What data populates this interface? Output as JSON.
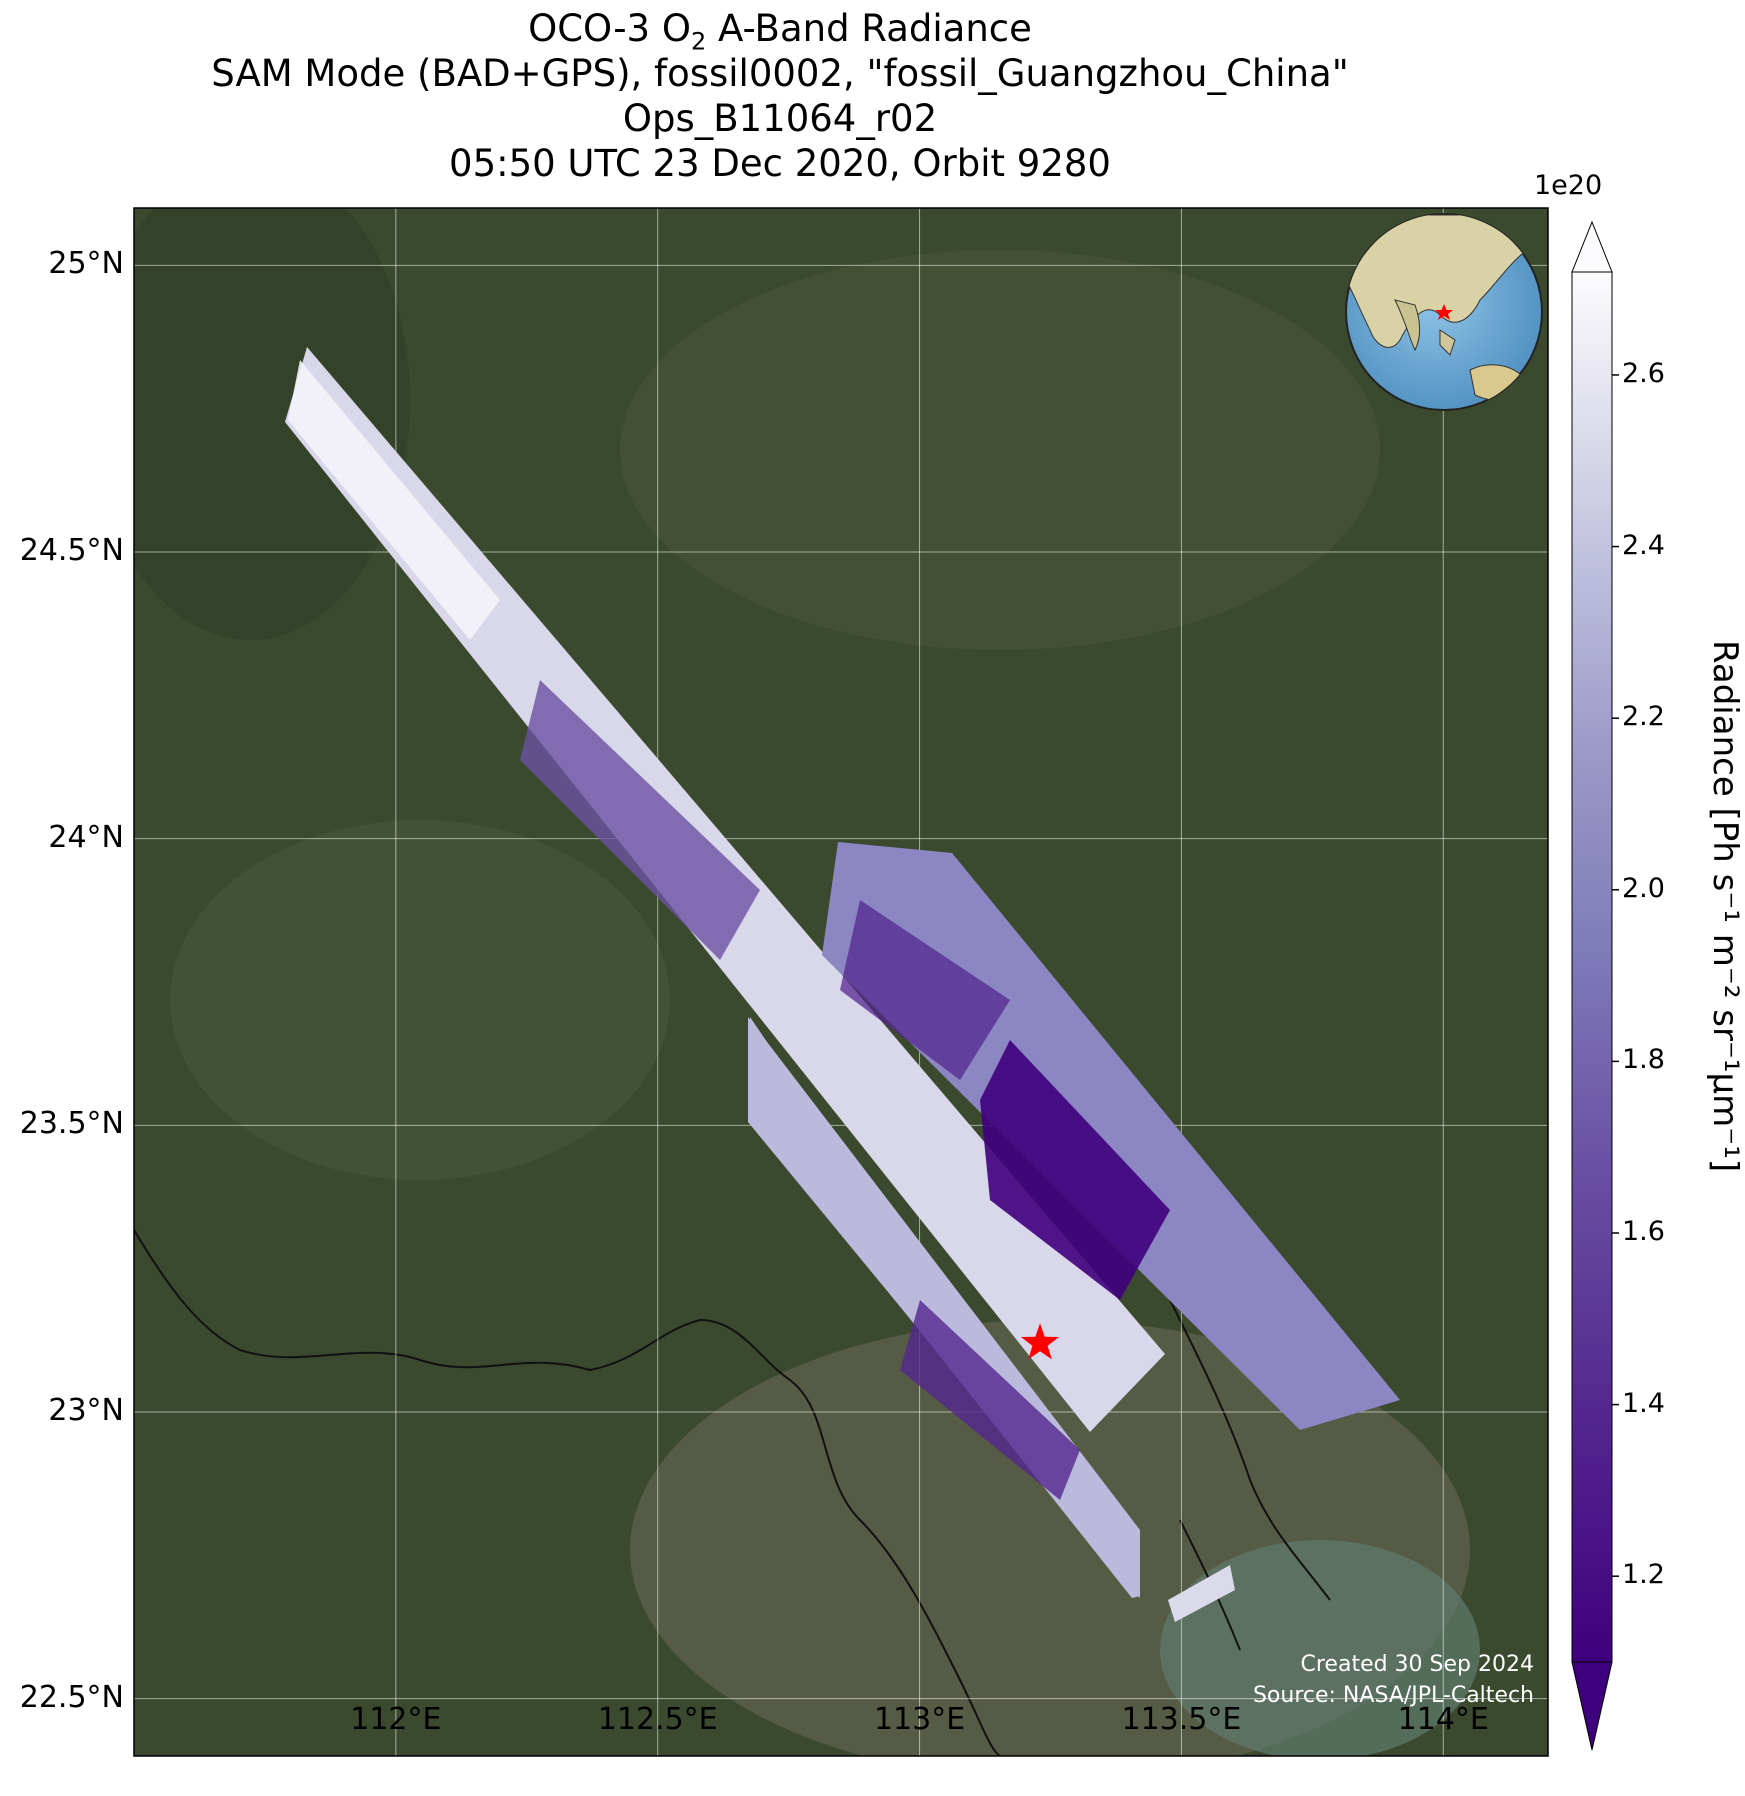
{
  "title": {
    "line1_prefix": "OCO-3 O",
    "line1_sub": "2",
    "line1_suffix": " A-Band Radiance",
    "line2": "SAM Mode (BAD+GPS), fossil0002, \"fossil_Guangzhou_China\"",
    "line3": "Ops_B11064_r02",
    "line4": "05:50 UTC 23 Dec 2020, Orbit 9280"
  },
  "map": {
    "extent": {
      "lon_min": 111.5,
      "lon_max": 114.2,
      "lat_min": 22.4,
      "lat_max": 25.1
    },
    "lat_ticks": [
      {
        "value": 25.0,
        "label": "25°N"
      },
      {
        "value": 24.5,
        "label": "24.5°N"
      },
      {
        "value": 24.0,
        "label": "24°N"
      },
      {
        "value": 23.5,
        "label": "23.5°N"
      },
      {
        "value": 23.0,
        "label": "23°N"
      },
      {
        "value": 22.5,
        "label": "22.5°N"
      }
    ],
    "lon_ticks": [
      {
        "value": 112.0,
        "label": "112°E"
      },
      {
        "value": 112.5,
        "label": "112.5°E"
      },
      {
        "value": 113.0,
        "label": "113°E"
      },
      {
        "value": 113.5,
        "label": "113.5°E"
      },
      {
        "value": 114.0,
        "label": "114°E"
      }
    ],
    "target_marker": {
      "lon": 113.23,
      "lat": 23.12,
      "color": "#ff0000"
    },
    "background_color": "#3b4a2e",
    "gridlines": true
  },
  "colorbar": {
    "label": "Radiance [Ph s⁻¹ m⁻² sr⁻¹μm⁻¹]",
    "exponent": "1e20",
    "min": 1.1,
    "max": 2.72,
    "ticks": [
      {
        "value": 2.6,
        "label": "2.6"
      },
      {
        "value": 2.4,
        "label": "2.4"
      },
      {
        "value": 2.2,
        "label": "2.2"
      },
      {
        "value": 2.0,
        "label": "2.0"
      },
      {
        "value": 1.8,
        "label": "1.8"
      },
      {
        "value": 1.6,
        "label": "1.6"
      },
      {
        "value": 1.4,
        "label": "1.4"
      },
      {
        "value": 1.2,
        "label": "1.2"
      }
    ],
    "colormap": "Purples_r",
    "color_low": "#3f007d",
    "color_high": "#fcfbfd"
  },
  "credits": {
    "created": "Created 30 Sep 2024",
    "source": "Source: NASA/JPL-Caltech"
  }
}
